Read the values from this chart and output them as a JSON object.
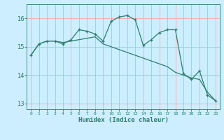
{
  "x": [
    0,
    1,
    2,
    3,
    4,
    5,
    6,
    7,
    8,
    9,
    10,
    11,
    12,
    13,
    14,
    15,
    16,
    17,
    18,
    19,
    20,
    21,
    22,
    23
  ],
  "line1": [
    14.7,
    15.1,
    15.2,
    15.2,
    15.1,
    15.25,
    15.6,
    15.55,
    15.45,
    15.2,
    15.9,
    16.05,
    16.1,
    15.95,
    15.05,
    15.25,
    15.5,
    15.6,
    15.6,
    14.05,
    13.85,
    14.15,
    13.3,
    13.1
  ],
  "line2": [
    14.7,
    15.1,
    15.2,
    15.2,
    15.15,
    15.2,
    15.25,
    15.3,
    15.35,
    15.1,
    15.0,
    14.9,
    14.8,
    14.7,
    14.6,
    14.5,
    14.4,
    14.3,
    14.1,
    14.0,
    13.9,
    13.85,
    13.4,
    13.1
  ],
  "ylim": [
    12.8,
    16.5
  ],
  "yticks": [
    13,
    14,
    15,
    16
  ],
  "bg_color": "#cceeff",
  "line_color": "#2e7d6e",
  "grid_color": "#ff9999",
  "xlabel": "Humidex (Indice chaleur)"
}
